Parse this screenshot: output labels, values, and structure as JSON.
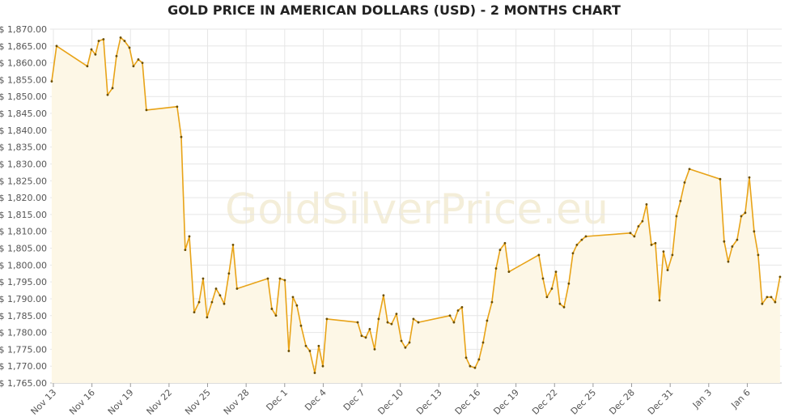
{
  "chart_data": {
    "type": "line",
    "title": "GOLD PRICE IN AMERICAN DOLLARS (USD) - 2 MONTHS CHART",
    "watermark": "GoldSilverPrice.eu",
    "color": "#e8a317",
    "fill_color": "#fdf7e6",
    "marker_color": "#6b4e00",
    "grid": true,
    "xlim": [
      -0.25,
      56.68
    ],
    "ylim": [
      1765,
      1870
    ],
    "xticks": [
      {
        "value": 0,
        "label": "Nov 13"
      },
      {
        "value": 3,
        "label": "Nov 16"
      },
      {
        "value": 6,
        "label": "Nov 19"
      },
      {
        "value": 9,
        "label": "Nov 22"
      },
      {
        "value": 12,
        "label": "Nov 25"
      },
      {
        "value": 15,
        "label": "Nov 28"
      },
      {
        "value": 18,
        "label": "Dec 1"
      },
      {
        "value": 21,
        "label": "Dec 4"
      },
      {
        "value": 24,
        "label": "Dec 7"
      },
      {
        "value": 27,
        "label": "Dec 10"
      },
      {
        "value": 30,
        "label": "Dec 13"
      },
      {
        "value": 33,
        "label": "Dec 16"
      },
      {
        "value": 36,
        "label": "Dec 19"
      },
      {
        "value": 39,
        "label": "Dec 22"
      },
      {
        "value": 42,
        "label": "Dec 25"
      },
      {
        "value": 45,
        "label": "Dec 28"
      },
      {
        "value": 48,
        "label": "Dec 31"
      },
      {
        "value": 51,
        "label": "Jan 3"
      },
      {
        "value": 54,
        "label": "Jan 6"
      }
    ],
    "yticks": [
      {
        "value": 1765,
        "label": "$ 1,765.00"
      },
      {
        "value": 1770,
        "label": "$ 1,770.00"
      },
      {
        "value": 1775,
        "label": "$ 1,775.00"
      },
      {
        "value": 1780,
        "label": "$ 1,780.00"
      },
      {
        "value": 1785,
        "label": "$ 1,785.00"
      },
      {
        "value": 1790,
        "label": "$ 1,790.00"
      },
      {
        "value": 1795,
        "label": "$ 1,795.00"
      },
      {
        "value": 1800,
        "label": "$ 1,800.00"
      },
      {
        "value": 1805,
        "label": "$ 1,805.00"
      },
      {
        "value": 1810,
        "label": "$ 1,810.00"
      },
      {
        "value": 1815,
        "label": "$ 1,815.00"
      },
      {
        "value": 1820,
        "label": "$ 1,820.00"
      },
      {
        "value": 1825,
        "label": "$ 1,825.00"
      },
      {
        "value": 1830,
        "label": "$ 1,830.00"
      },
      {
        "value": 1835,
        "label": "$ 1,835.00"
      },
      {
        "value": 1840,
        "label": "$ 1,840.00"
      },
      {
        "value": 1845,
        "label": "$ 1,845.00"
      },
      {
        "value": 1850,
        "label": "$ 1,850.00"
      },
      {
        "value": 1855,
        "label": "$ 1,855.00"
      },
      {
        "value": 1860,
        "label": "$ 1,860.00"
      },
      {
        "value": 1865,
        "label": "$ 1,865.00"
      },
      {
        "value": 1870,
        "label": "$ 1,870.00"
      }
    ],
    "x": [
      -0.13,
      0.25,
      2.64,
      2.96,
      3.27,
      3.53,
      3.9,
      4.22,
      4.6,
      4.91,
      5.23,
      5.54,
      5.92,
      6.23,
      6.61,
      6.93,
      7.24,
      9.63,
      9.95,
      10.26,
      10.58,
      10.96,
      11.34,
      11.65,
      11.96,
      12.34,
      12.66,
      12.97,
      13.29,
      13.66,
      13.98,
      14.29,
      16.69,
      17.0,
      17.32,
      17.63,
      18.01,
      18.32,
      18.64,
      18.95,
      19.27,
      19.65,
      19.96,
      20.34,
      20.65,
      20.97,
      21.28,
      23.68,
      23.99,
      24.31,
      24.62,
      25.0,
      25.31,
      25.69,
      26.01,
      26.32,
      26.7,
      27.08,
      27.39,
      27.71,
      28.02,
      28.4,
      30.86,
      31.17,
      31.49,
      31.8,
      32.12,
      32.43,
      32.81,
      33.12,
      33.44,
      33.75,
      34.13,
      34.45,
      34.76,
      35.14,
      35.45,
      37.78,
      38.1,
      38.41,
      38.79,
      39.11,
      39.42,
      39.74,
      40.11,
      40.43,
      40.74,
      41.12,
      41.44,
      44.9,
      45.21,
      45.53,
      45.84,
      46.16,
      46.54,
      46.85,
      47.17,
      47.48,
      47.8,
      48.17,
      48.49,
      48.8,
      49.12,
      49.5,
      51.89,
      52.2,
      52.52,
      52.83,
      53.21,
      53.53,
      53.84,
      54.16,
      54.53,
      54.85,
      55.16,
      55.54,
      55.86,
      56.17,
      56.55
    ],
    "values": [
      1854.5,
      1865,
      1859,
      1864,
      1862.5,
      1866.5,
      1867,
      1850.5,
      1852.5,
      1862,
      1867.5,
      1866.5,
      1864.5,
      1859,
      1861,
      1860,
      1846,
      1847,
      1838,
      1804.5,
      1808.5,
      1786,
      1789,
      1796,
      1784.5,
      1789,
      1793,
      1791,
      1788.5,
      1797.5,
      1806,
      1793,
      1796,
      1787,
      1785,
      1796,
      1795.5,
      1774.5,
      1790.5,
      1788,
      1782,
      1776,
      1774.5,
      1768,
      1776,
      1770,
      1784,
      1783,
      1779,
      1778.5,
      1781,
      1775,
      1784,
      1791,
      1783,
      1782.5,
      1785.5,
      1777.5,
      1775.5,
      1777,
      1784,
      1783,
      1785,
      1783,
      1786.5,
      1787.5,
      1772.5,
      1770,
      1769.5,
      1772,
      1777,
      1783.5,
      1789,
      1799,
      1804.5,
      1806.5,
      1798,
      1803,
      1796,
      1790.5,
      1793,
      1798,
      1788.5,
      1787.5,
      1794.5,
      1803.5,
      1806,
      1807.5,
      1808.5,
      1809.5,
      1808.5,
      1811.5,
      1813,
      1818,
      1806,
      1806.5,
      1789.5,
      1804,
      1798.5,
      1803,
      1814.5,
      1819,
      1824.5,
      1828.5,
      1825.5,
      1807,
      1801,
      1805.5,
      1807.5,
      1814.5,
      1815.5,
      1826,
      1810,
      1803,
      1788.5,
      1790.5,
      1790.5,
      1789,
      1796.5
    ]
  }
}
